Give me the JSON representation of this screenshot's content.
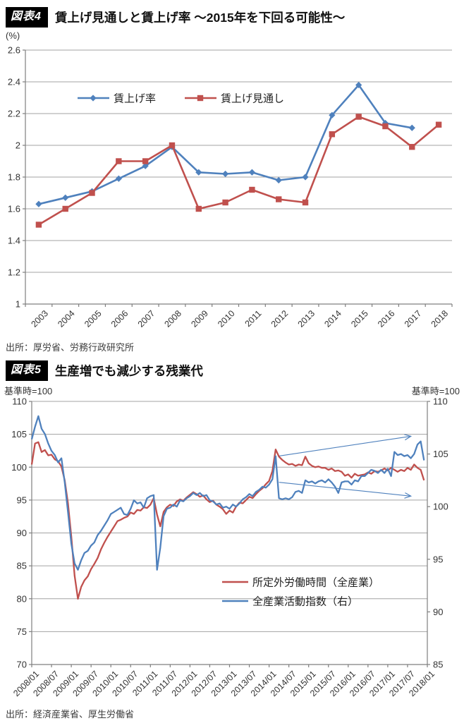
{
  "figure4": {
    "badge": "図表4",
    "title": "賃上げ見通しと賃上げ率 ～2015年を下回る可能性～",
    "unit_label": "(%)",
    "source": "出所：厚労省、労務行政研究所"
  },
  "figure5": {
    "badge": "図表5",
    "title": "生産増でも減少する残業代",
    "left_axis_caption": "基準時=100",
    "right_axis_caption": "基準時=100",
    "source": "出所：経済産業省、厚生労働省"
  },
  "colors": {
    "series_blue": "#4F81BD",
    "series_red": "#C0504D",
    "grid": "#a3a3a3",
    "axis": "#7f7f7f"
  },
  "chart_data": [
    {
      "type": "line",
      "title": "賃上げ見通しと賃上げ率 ～2015年を下回る可能性～",
      "ylabel": "(%)",
      "ylim": [
        1.0,
        2.6
      ],
      "grid": true,
      "legend_position": "inside-top-left",
      "y_tick_labels": [
        "2.6",
        "2.4",
        "2.2",
        "2",
        "1.8",
        "1.6",
        "1.4",
        "1.2",
        "1"
      ],
      "categories": [
        "2003",
        "2004",
        "2005",
        "2006",
        "2007",
        "2008",
        "2009",
        "2010",
        "2011",
        "2012",
        "2013",
        "2014",
        "2015",
        "2016",
        "2017",
        "2018"
      ],
      "series": [
        {
          "name": "賃上げ率",
          "color": "#4F81BD",
          "marker": "diamond",
          "values": [
            1.63,
            1.67,
            1.71,
            1.79,
            1.87,
            1.99,
            1.83,
            1.82,
            1.83,
            1.78,
            1.8,
            2.19,
            2.38,
            2.14,
            2.11,
            null
          ]
        },
        {
          "name": "賃上げ見通し",
          "color": "#C0504D",
          "marker": "square",
          "values": [
            1.5,
            1.6,
            1.7,
            1.9,
            1.9,
            2.0,
            1.6,
            1.64,
            1.72,
            1.66,
            1.64,
            2.07,
            2.18,
            2.12,
            1.99,
            2.13
          ]
        }
      ]
    },
    {
      "type": "line",
      "title": "生産増でも減少する残業代",
      "x_start": "2008/01",
      "x_end": "2018/01",
      "x_tick_labels": [
        "2008/01",
        "2008/07",
        "2009/01",
        "2009/07",
        "2010/01",
        "2010/07",
        "2011/01",
        "2011/07",
        "2012/01",
        "2012/07",
        "2013/01",
        "2013/07",
        "2014/01",
        "2014/07",
        "2015/01",
        "2015/07",
        "2016/01",
        "2016/07",
        "2017/01",
        "2017/07",
        "2018/01"
      ],
      "left_ylim": [
        70,
        110
      ],
      "right_ylim": [
        85,
        110
      ],
      "left_y_ticks": [
        110,
        105,
        100,
        95,
        90,
        85,
        80,
        75,
        70
      ],
      "right_y_ticks": [
        110,
        105,
        100,
        95,
        90,
        85
      ],
      "left_axis_caption": "基準時=100",
      "right_axis_caption": "基準時=100",
      "grid": true,
      "legend_position": "inside-bottom-center",
      "series": [
        {
          "name": "所定外労働時間（全産業）",
          "axis": "left",
          "color": "#C0504D",
          "values": [
            100.4,
            103.6,
            103.8,
            102.3,
            102.6,
            101.8,
            101.9,
            101.2,
            100.9,
            100.1,
            98.0,
            94.5,
            89.5,
            83.5,
            80.0,
            81.8,
            82.8,
            83.4,
            84.5,
            85.3,
            86.2,
            87.5,
            88.5,
            89.4,
            90.2,
            91.0,
            91.8,
            92.0,
            92.3,
            92.5,
            93.1,
            92.9,
            93.5,
            93.4,
            93.9,
            93.8,
            94.3,
            95.3,
            92.8,
            91.0,
            93.2,
            93.9,
            94.3,
            94.1,
            94.8,
            95.1,
            94.9,
            95.4,
            95.8,
            96.2,
            95.9,
            95.5,
            95.7,
            95.1,
            94.7,
            94.9,
            94.3,
            94.0,
            93.6,
            92.9,
            93.4,
            93.1,
            94.0,
            94.6,
            94.5,
            95.0,
            95.5,
            95.3,
            95.9,
            96.4,
            96.8,
            97.4,
            97.9,
            99.4,
            102.7,
            101.6,
            101.1,
            100.7,
            100.4,
            100.5,
            100.2,
            100.4,
            100.3,
            101.6,
            100.6,
            100.2,
            100.0,
            100.1,
            99.9,
            99.9,
            99.6,
            99.8,
            99.4,
            99.5,
            99.3,
            98.7,
            98.9,
            98.4,
            99.0,
            98.7,
            98.8,
            98.9,
            99.2,
            99.0,
            99.4,
            99.3,
            99.5,
            99.8,
            99.5,
            99.9,
            99.6,
            99.3,
            99.6,
            99.4,
            99.9,
            99.6,
            100.4,
            99.9,
            99.6,
            98.0
          ]
        },
        {
          "name": "全産業活動指数（右）",
          "axis": "right",
          "color": "#4F81BD",
          "values": [
            106.4,
            107.6,
            108.6,
            107.4,
            106.9,
            106.0,
            105.3,
            104.9,
            104.2,
            104.6,
            102.3,
            99.5,
            96.5,
            94.6,
            94.0,
            94.9,
            95.6,
            95.8,
            96.3,
            96.6,
            97.3,
            97.7,
            98.2,
            98.7,
            99.3,
            99.5,
            99.7,
            99.9,
            99.3,
            99.2,
            99.8,
            100.6,
            100.3,
            100.4,
            99.9,
            100.8,
            101.0,
            101.1,
            94.0,
            96.1,
            99.1,
            99.8,
            99.9,
            100.2,
            100.0,
            100.6,
            100.5,
            100.8,
            101.0,
            101.3,
            101.1,
            101.3,
            101.0,
            101.1,
            100.6,
            100.5,
            100.2,
            100.3,
            99.9,
            100.0,
            99.8,
            100.2,
            100.0,
            100.3,
            100.7,
            100.9,
            101.2,
            101.0,
            101.4,
            101.6,
            101.9,
            101.8,
            102.1,
            102.6,
            104.8,
            100.8,
            100.7,
            100.8,
            100.7,
            100.9,
            101.4,
            101.5,
            101.3,
            102.5,
            102.3,
            102.4,
            102.2,
            102.4,
            102.5,
            102.3,
            102.6,
            102.3,
            101.9,
            101.3,
            102.3,
            102.4,
            102.4,
            102.1,
            102.5,
            102.4,
            102.9,
            102.9,
            103.2,
            103.5,
            103.4,
            103.2,
            103.5,
            103.2,
            103.6,
            102.9,
            105.2,
            104.9,
            105.0,
            104.8,
            104.9,
            104.6,
            105.0,
            105.9,
            106.2,
            104.4
          ]
        }
      ],
      "annotations": [
        {
          "type": "arrow",
          "axis": "left",
          "from": {
            "month_index": 75,
            "value": 101.7
          },
          "to": {
            "month_index": 115,
            "value": 104.7
          }
        },
        {
          "type": "arrow",
          "axis": "left",
          "from": {
            "month_index": 75,
            "value": 97.7
          },
          "to": {
            "month_index": 115,
            "value": 95.6
          }
        }
      ]
    }
  ]
}
